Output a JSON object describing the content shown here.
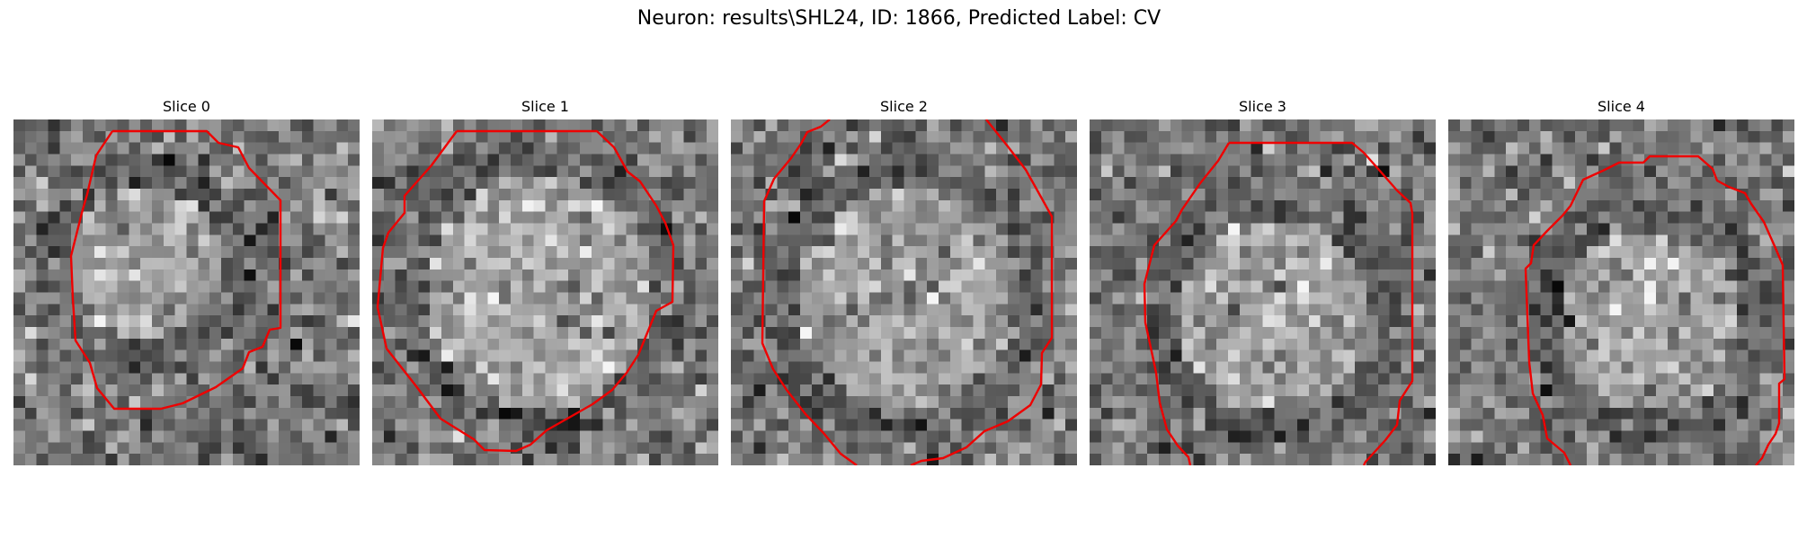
{
  "figure": {
    "title": "Neuron: results\\SHL24, ID: 1866, Predicted Label: CV"
  },
  "panels": [
    {
      "title": "Slice 0"
    },
    {
      "title": "Slice 1"
    },
    {
      "title": "Slice 2"
    },
    {
      "title": "Slice 3"
    },
    {
      "title": "Slice 4"
    }
  ],
  "style": {
    "contour_color": "#ee0000",
    "colormap": "gray"
  }
}
